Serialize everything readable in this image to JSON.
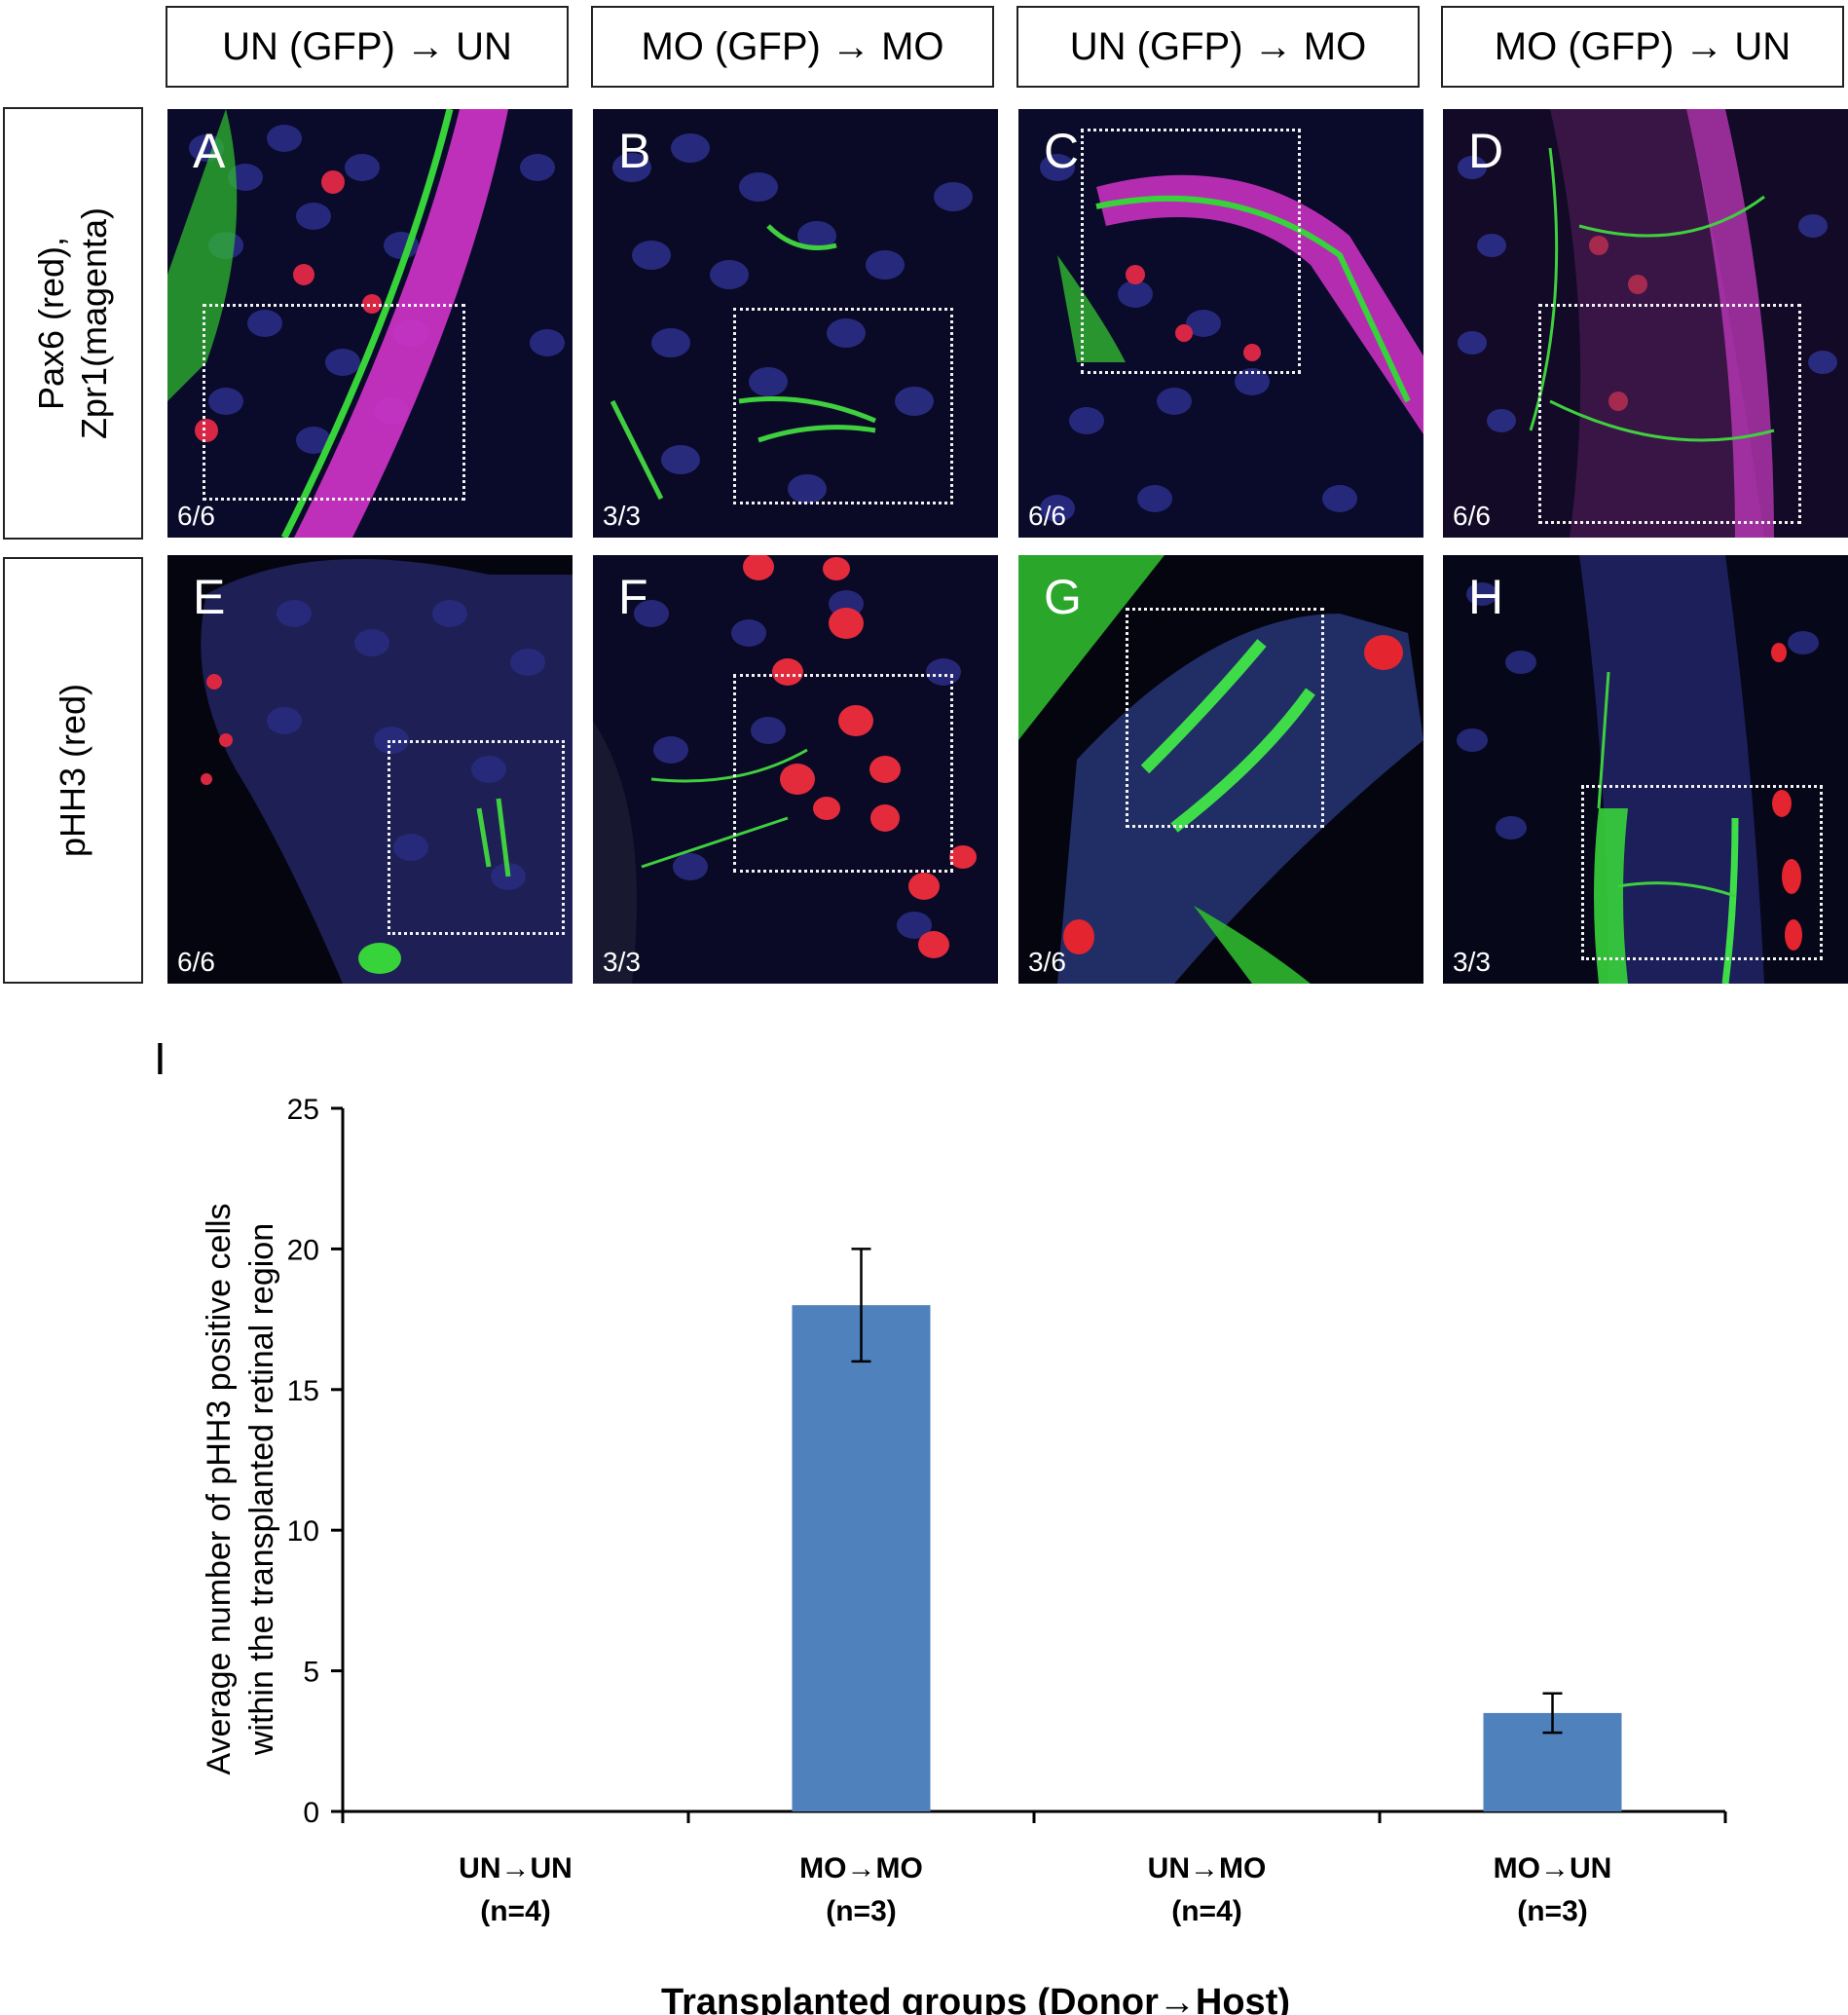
{
  "columns": [
    "UN (GFP) → UN",
    "MO (GFP) → MO",
    "UN (GFP) → MO",
    "MO (GFP) → UN"
  ],
  "rows": [
    {
      "label_line1": "Pax6 (red),",
      "label_line2": "Zpr1(magenta)"
    },
    {
      "label_line1": "pHH3 (red)",
      "label_line2": ""
    }
  ],
  "panels": [
    {
      "letter": "A",
      "count": "6/6"
    },
    {
      "letter": "B",
      "count": "3/3"
    },
    {
      "letter": "C",
      "count": "6/6"
    },
    {
      "letter": "D",
      "count": "6/6"
    },
    {
      "letter": "E",
      "count": "6/6"
    },
    {
      "letter": "F",
      "count": "3/3"
    },
    {
      "letter": "G",
      "count": "3/6"
    },
    {
      "letter": "H",
      "count": "3/3"
    }
  ],
  "chart_letter": "I",
  "chart_data": {
    "type": "bar",
    "categories": [
      "UN→UN",
      "MO→MO",
      "UN→MO",
      "MO→UN"
    ],
    "category_n": [
      "(n=4)",
      "(n=3)",
      "(n=4)",
      "(n=3)"
    ],
    "values": [
      0,
      18,
      0,
      3.5
    ],
    "errors": [
      0,
      2,
      0,
      0.7
    ],
    "ylim": [
      0,
      25
    ],
    "yticks": [
      0,
      5,
      10,
      15,
      20,
      25
    ],
    "ylabel_line1": "Average number of pHH3 positive cells",
    "ylabel_line2": "within the transplanted retinal region",
    "xlabel": "Transplanted groups (Donor→Host)",
    "bar_color": "#4f81bd",
    "grid": false
  }
}
